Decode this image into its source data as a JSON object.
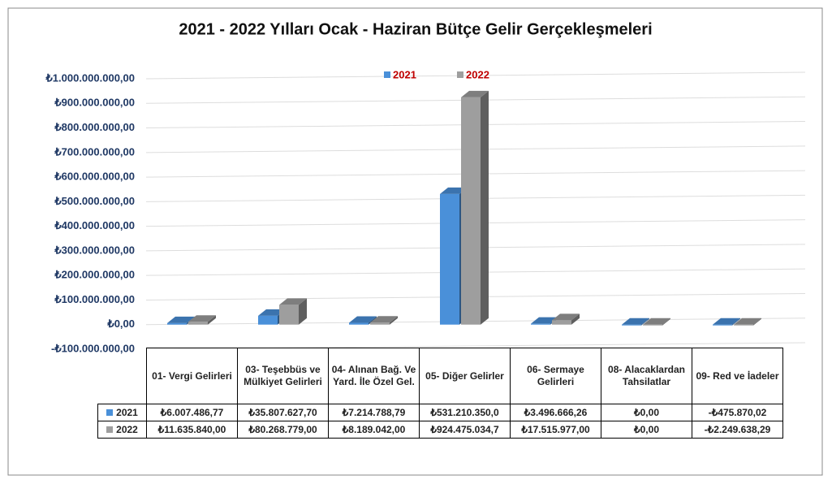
{
  "chart_data": {
    "type": "bar",
    "title": "2021 - 2022 Yılları Ocak - Haziran Bütçe Gelir Gerçekleşmeleri",
    "categories": [
      "01- Vergi Gelirleri",
      "03- Teşebbüs ve Mülkiyet Gelirleri",
      "04- Alınan Bağ. Ve Yard. İle Özel Gel.",
      "05- Diğer Gelirler",
      "06- Sermaye Gelirleri",
      "08- Alacaklardan Tahsilatlar",
      "09- Red ve İadeler"
    ],
    "series": [
      {
        "name": "2021",
        "color": "#4a90d9",
        "values": [
          6007486.77,
          35807627.7,
          7214788.79,
          531210350.0,
          3496666.26,
          0,
          -475870.02
        ],
        "value_labels": [
          "₺6.007.486,77",
          "₺35.807.627,70",
          "₺7.214.788,79",
          "₺531.210.350,0",
          "₺3.496.666,26",
          "₺0,00",
          "-₺475.870,02"
        ]
      },
      {
        "name": "2022",
        "color": "#9e9e9e",
        "values": [
          11635840.0,
          80268779.0,
          8189042.0,
          924475034.7,
          17515977.0,
          0,
          -2249638.29
        ],
        "value_labels": [
          "₺11.635.840,00",
          "₺80.268.779,00",
          "₺8.189.042,00",
          "₺924.475.034,7",
          "₺17.515.977,00",
          "₺0,00",
          "-₺2.249.638,29"
        ]
      }
    ],
    "ylim": [
      -100000000,
      1000000000
    ],
    "yticks": [
      {
        "value": -100000000,
        "label": "-₺100.000.000,00"
      },
      {
        "value": 0,
        "label": "₺0,00"
      },
      {
        "value": 100000000,
        "label": "₺100.000.000,00"
      },
      {
        "value": 200000000,
        "label": "₺200.000.000,00"
      },
      {
        "value": 300000000,
        "label": "₺300.000.000,00"
      },
      {
        "value": 400000000,
        "label": "₺400.000.000,00"
      },
      {
        "value": 500000000,
        "label": "₺500.000.000,00"
      },
      {
        "value": 600000000,
        "label": "₺600.000.000,00"
      },
      {
        "value": 700000000,
        "label": "₺700.000.000,00"
      },
      {
        "value": 800000000,
        "label": "₺800.000.000,00"
      },
      {
        "value": 900000000,
        "label": "₺900.000.000,00"
      },
      {
        "value": 1000000000,
        "label": "₺1.000.000.000,00"
      }
    ],
    "grid": true,
    "legend": "top"
  }
}
